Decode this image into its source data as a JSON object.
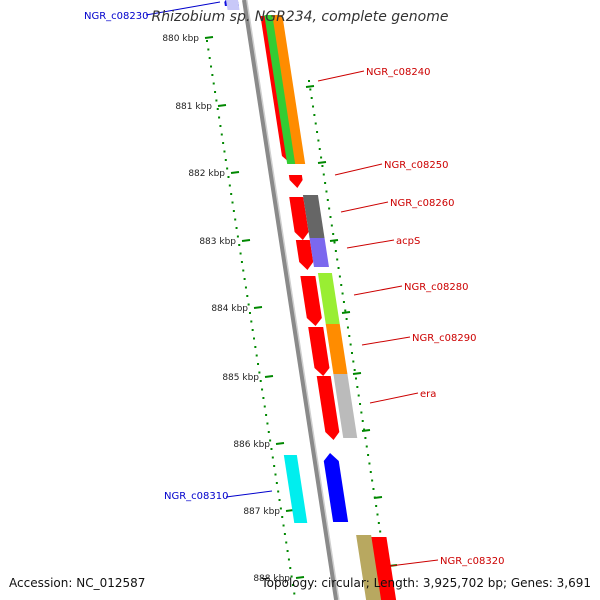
{
  "title": "Rhizobium sp. NGR234, complete genome",
  "accession_text": "Accession: NC_012587",
  "summary_text": "Topology: circular; Length: 3,925,702 bp; Genes: 3,691",
  "ticks": [
    "880 kbp",
    "881 kbp",
    "882 kbp",
    "883 kbp",
    "884 kbp",
    "885 kbp",
    "886 kbp",
    "887 kbp",
    "888 kbp"
  ],
  "genes": [
    {
      "name": "NGR_c08230",
      "strand": "reverse",
      "color": "#1010e0",
      "label_color": "#0000cc"
    },
    {
      "name": "NGR_c08240",
      "strand": "forward",
      "color": "#ff0000",
      "label_color": "#cc0000"
    },
    {
      "name": "NGR_c08250",
      "strand": "forward",
      "color": "#ff0000",
      "label_color": "#cc0000"
    },
    {
      "name": "NGR_c08260",
      "strand": "forward",
      "color": "#ff0000",
      "label_color": "#cc0000"
    },
    {
      "name": "acpS",
      "strand": "forward",
      "color": "#ff0000",
      "label_color": "#cc0000"
    },
    {
      "name": "NGR_c08280",
      "strand": "forward",
      "color": "#ff0000",
      "label_color": "#cc0000"
    },
    {
      "name": "NGR_c08290",
      "strand": "forward",
      "color": "#ff0000",
      "label_color": "#cc0000"
    },
    {
      "name": "era",
      "strand": "forward",
      "color": "#ff0000",
      "label_color": "#cc0000"
    },
    {
      "name": "NGR_c08310",
      "strand": "reverse",
      "color": "#0000ff",
      "label_color": "#0000cc"
    },
    {
      "name": "NGR_c08320",
      "strand": "forward",
      "color": "#ff0000",
      "label_color": "#cc0000"
    }
  ],
  "colors": {
    "backbone": "#8a8a8a",
    "tick": "#008800",
    "forward": "#ff0000",
    "reverse": "#0000ff",
    "green": "#33cc33",
    "orange": "#ff8c00",
    "dark_gray": "#666666",
    "lavender": "#7b68ee",
    "lime": "#99ee33",
    "light_gray": "#bbbbbb",
    "cyan": "#00eeee",
    "tan": "#b8a860"
  }
}
